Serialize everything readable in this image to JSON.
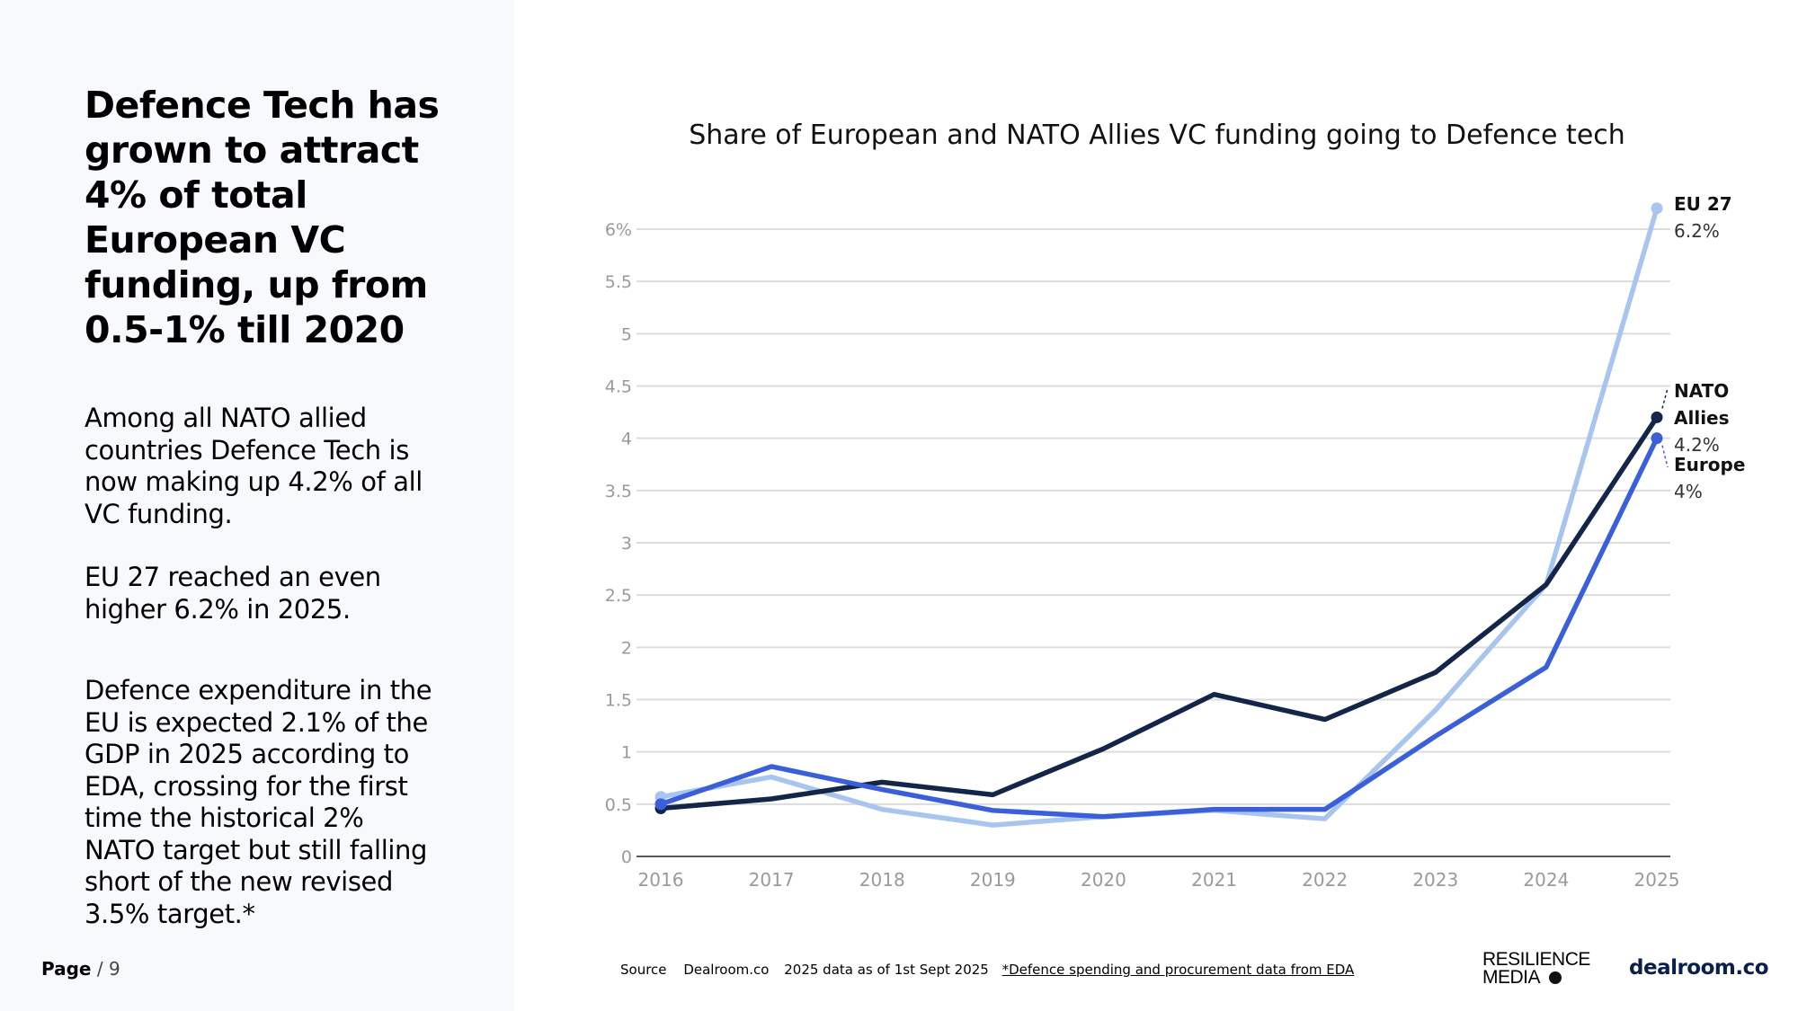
{
  "left_panel": {
    "headline": "Defence Tech has grown to attract 4% of total European VC funding, up from 0.5-1% till 2020",
    "paragraphs": [
      "Among all NATO allied countries Defence Tech is now making up 4.2% of all VC funding.",
      "EU 27 reached an even higher 6.2% in 2025.",
      "Defence expenditure in the EU is expected 2.1% of the GDP in 2025 according to EDA, crossing for the first time the historical 2% NATO target but still falling short of the new revised 3.5% target.*"
    ],
    "page_label": "Page",
    "page_number": " / 9"
  },
  "chart_data": {
    "type": "line",
    "title": "Share of European and NATO Allies VC funding going to Defence tech",
    "x": [
      "2016",
      "2017",
      "2018",
      "2019",
      "2020",
      "2021",
      "2022",
      "2023",
      "2024",
      "2025"
    ],
    "y_ticks": [
      "0",
      "0.5",
      "1",
      "1.5",
      "2",
      "2.5",
      "3",
      "3.5",
      "4",
      "4.5",
      "5",
      "5.5",
      "6%"
    ],
    "ylim": [
      0,
      6
    ],
    "grid": true,
    "series": [
      {
        "name": "EU 27",
        "end_label_lines": [
          "EU 27"
        ],
        "end_value_label": "6.2%",
        "color": "#a8c5f0",
        "values": [
          0.57,
          0.76,
          0.45,
          0.3,
          0.38,
          0.44,
          0.36,
          1.4,
          2.6,
          6.2
        ]
      },
      {
        "name": "NATO Allies",
        "end_label_lines": [
          "NATO",
          "Allies"
        ],
        "end_value_label": "4.2%",
        "color": "#13264a",
        "values": [
          0.46,
          0.55,
          0.71,
          0.59,
          1.03,
          1.55,
          1.31,
          1.76,
          2.6,
          4.2
        ]
      },
      {
        "name": "Europe",
        "end_label_lines": [
          "Europe"
        ],
        "end_value_label": "4%",
        "color": "#3a5fd9",
        "values": [
          0.5,
          0.86,
          0.64,
          0.44,
          0.38,
          0.45,
          0.45,
          1.15,
          1.81,
          4.0
        ]
      }
    ]
  },
  "footer": {
    "source_label": "Source",
    "source_value": "Dealroom.co",
    "data_note": "2025 data as of 1st Sept 2025",
    "eda_note": "*Defence spending and procurement data from EDA"
  },
  "logos": {
    "resilience_line1": "RESILIENCE",
    "resilience_line2": "MEDIA",
    "dealroom": "dealroom.co"
  }
}
